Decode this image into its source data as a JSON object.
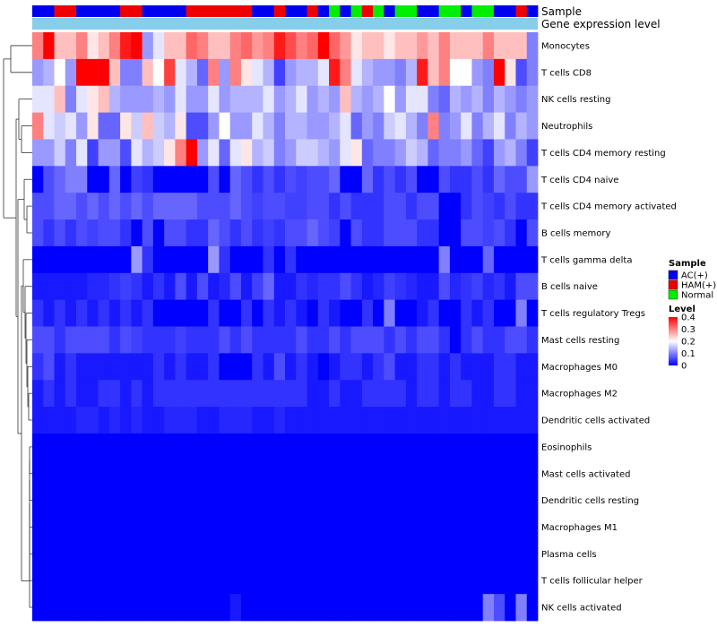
{
  "chart_data": {
    "type": "heatmap",
    "annotation_labels": [
      "Sample",
      "Gene expression level"
    ],
    "rows": [
      "Monocytes",
      "T cells CD8",
      "NK cells resting",
      "Neutrophils",
      "T cells CD4 memory resting",
      "T cells CD4 naive",
      "T cells CD4 memory activated",
      "B cells memory",
      "T cells gamma delta",
      "B cells naive",
      "T cells regulatory  Tregs",
      "Mast cells resting",
      "Macrophages M0",
      "Macrophages M2",
      "Dendritic cells activated",
      "Eosinophils",
      "Mast cells activated",
      "Dendritic cells resting",
      "Macrophages M1",
      "Plasma cells",
      "T cells follicular helper",
      "NK cells activated"
    ],
    "sample_groups": [
      "AC",
      "AC",
      "HAM",
      "HAM",
      "AC",
      "AC",
      "AC",
      "AC",
      "HAM",
      "HAM",
      "AC",
      "AC",
      "AC",
      "AC",
      "HAM",
      "HAM",
      "HAM",
      "HAM",
      "HAM",
      "HAM",
      "AC",
      "AC",
      "HAM",
      "AC",
      "AC",
      "HAM",
      "AC",
      "Normal",
      "AC",
      "Normal",
      "HAM",
      "Normal",
      "AC",
      "Normal",
      "Normal",
      "AC",
      "AC",
      "Normal",
      "Normal",
      "AC",
      "Normal",
      "Normal",
      "AC",
      "AC",
      "HAM",
      "AC"
    ],
    "matrix": [
      [
        0.3,
        0.4,
        0.25,
        0.25,
        0.3,
        0.22,
        0.25,
        0.3,
        0.38,
        0.4,
        0.12,
        0.18,
        0.25,
        0.25,
        0.32,
        0.3,
        0.25,
        0.25,
        0.3,
        0.32,
        0.28,
        0.3,
        0.38,
        0.34,
        0.3,
        0.32,
        0.4,
        0.32,
        0.28,
        0.22,
        0.25,
        0.25,
        0.22,
        0.25,
        0.25,
        0.28,
        0.25,
        0.3,
        0.25,
        0.25,
        0.25,
        0.3,
        0.25,
        0.25,
        0.25,
        0.1
      ],
      [
        0.12,
        0.14,
        0.2,
        0.12,
        0.4,
        0.4,
        0.4,
        0.25,
        0.1,
        0.1,
        0.25,
        0.2,
        0.35,
        0.18,
        0.14,
        0.08,
        0.3,
        0.12,
        0.3,
        0.22,
        0.18,
        0.14,
        0.05,
        0.12,
        0.14,
        0.14,
        0.18,
        0.38,
        0.3,
        0.18,
        0.14,
        0.12,
        0.12,
        0.1,
        0.14,
        0.38,
        0.25,
        0.3,
        0.2,
        0.2,
        0.12,
        0.1,
        0.4,
        0.22,
        0.06,
        0.1
      ],
      [
        0.18,
        0.18,
        0.25,
        0.1,
        0.18,
        0.22,
        0.25,
        0.14,
        0.12,
        0.12,
        0.12,
        0.14,
        0.12,
        0.18,
        0.12,
        0.12,
        0.18,
        0.12,
        0.14,
        0.14,
        0.14,
        0.18,
        0.12,
        0.14,
        0.18,
        0.12,
        0.14,
        0.12,
        0.25,
        0.14,
        0.12,
        0.14,
        0.2,
        0.12,
        0.18,
        0.18,
        0.1,
        0.08,
        0.14,
        0.12,
        0.14,
        0.1,
        0.14,
        0.12,
        0.1,
        0.12
      ],
      [
        0.3,
        0.18,
        0.16,
        0.18,
        0.12,
        0.22,
        0.08,
        0.08,
        0.22,
        0.16,
        0.25,
        0.16,
        0.14,
        0.22,
        0.06,
        0.06,
        0.12,
        0.2,
        0.12,
        0.12,
        0.18,
        0.14,
        0.1,
        0.14,
        0.14,
        0.12,
        0.12,
        0.14,
        0.18,
        0.08,
        0.12,
        0.1,
        0.16,
        0.18,
        0.14,
        0.1,
        0.3,
        0.1,
        0.12,
        0.18,
        0.1,
        0.14,
        0.18,
        0.1,
        0.14,
        0.12
      ],
      [
        0.12,
        0.12,
        0.16,
        0.1,
        0.18,
        0.05,
        0.12,
        0.12,
        0.06,
        0.18,
        0.14,
        0.16,
        0.22,
        0.3,
        0.4,
        0.12,
        0.18,
        0.08,
        0.18,
        0.22,
        0.14,
        0.16,
        0.1,
        0.12,
        0.16,
        0.16,
        0.14,
        0.12,
        0.18,
        0.22,
        0.08,
        0.1,
        0.1,
        0.12,
        0.16,
        0.14,
        0.08,
        0.1,
        0.1,
        0.12,
        0.08,
        0.05,
        0.12,
        0.14,
        0.1,
        0.05
      ],
      [
        0.0,
        0.06,
        0.08,
        0.1,
        0.1,
        0.0,
        0.0,
        0.08,
        0.0,
        0.05,
        0.04,
        0.0,
        0.0,
        0.0,
        0.0,
        0.0,
        0.06,
        0.0,
        0.08,
        0.06,
        0.04,
        0.06,
        0.04,
        0.06,
        0.05,
        0.06,
        0.06,
        0.08,
        0.0,
        0.0,
        0.08,
        0.04,
        0.06,
        0.04,
        0.06,
        0.0,
        0.0,
        0.06,
        0.04,
        0.04,
        0.06,
        0.04,
        0.08,
        0.06,
        0.06,
        0.12
      ],
      [
        0.06,
        0.06,
        0.08,
        0.08,
        0.06,
        0.08,
        0.06,
        0.08,
        0.06,
        0.08,
        0.06,
        0.08,
        0.08,
        0.08,
        0.08,
        0.06,
        0.06,
        0.06,
        0.08,
        0.06,
        0.05,
        0.06,
        0.06,
        0.05,
        0.05,
        0.06,
        0.06,
        0.04,
        0.06,
        0.04,
        0.04,
        0.04,
        0.06,
        0.06,
        0.04,
        0.06,
        0.06,
        0.0,
        0.0,
        0.04,
        0.06,
        0.05,
        0.04,
        0.06,
        0.04,
        0.04
      ],
      [
        0.06,
        0.04,
        0.06,
        0.04,
        0.06,
        0.05,
        0.06,
        0.06,
        0.04,
        0.0,
        0.06,
        0.0,
        0.06,
        0.06,
        0.04,
        0.04,
        0.08,
        0.06,
        0.04,
        0.06,
        0.04,
        0.05,
        0.04,
        0.06,
        0.06,
        0.08,
        0.06,
        0.05,
        0.0,
        0.06,
        0.04,
        0.04,
        0.06,
        0.06,
        0.06,
        0.04,
        0.04,
        0.0,
        0.0,
        0.06,
        0.06,
        0.05,
        0.06,
        0.04,
        0.0,
        0.06
      ],
      [
        0.0,
        0.0,
        0.0,
        0.0,
        0.0,
        0.0,
        0.0,
        0.0,
        0.0,
        0.12,
        0.04,
        0.0,
        0.0,
        0.0,
        0.0,
        0.0,
        0.12,
        0.04,
        0.0,
        0.0,
        0.0,
        0.04,
        0.0,
        0.04,
        0.0,
        0.0,
        0.0,
        0.0,
        0.0,
        0.0,
        0.0,
        0.0,
        0.0,
        0.0,
        0.0,
        0.0,
        0.0,
        0.1,
        0.0,
        0.0,
        0.0,
        0.08,
        0.0,
        0.0,
        0.0,
        0.0
      ],
      [
        0.02,
        0.02,
        0.02,
        0.02,
        0.02,
        0.03,
        0.03,
        0.04,
        0.05,
        0.04,
        0.02,
        0.04,
        0.02,
        0.06,
        0.02,
        0.06,
        0.02,
        0.03,
        0.06,
        0.02,
        0.05,
        0.08,
        0.02,
        0.02,
        0.04,
        0.03,
        0.04,
        0.04,
        0.06,
        0.04,
        0.02,
        0.03,
        0.05,
        0.04,
        0.03,
        0.02,
        0.02,
        0.06,
        0.03,
        0.04,
        0.05,
        0.03,
        0.04,
        0.02,
        0.06,
        0.06
      ],
      [
        0.04,
        0.02,
        0.04,
        0.02,
        0.04,
        0.02,
        0.04,
        0.02,
        0.04,
        0.02,
        0.04,
        0.0,
        0.0,
        0.0,
        0.0,
        0.0,
        0.04,
        0.0,
        0.0,
        0.04,
        0.0,
        0.04,
        0.02,
        0.04,
        0.02,
        0.0,
        0.04,
        0.02,
        0.0,
        0.0,
        0.04,
        0.0,
        0.1,
        0.0,
        0.0,
        0.02,
        0.04,
        0.0,
        0.0,
        0.04,
        0.02,
        0.04,
        0.0,
        0.0,
        0.1,
        0.0
      ],
      [
        0.06,
        0.06,
        0.04,
        0.06,
        0.06,
        0.06,
        0.06,
        0.04,
        0.06,
        0.05,
        0.04,
        0.04,
        0.04,
        0.05,
        0.04,
        0.04,
        0.04,
        0.06,
        0.04,
        0.06,
        0.04,
        0.04,
        0.04,
        0.04,
        0.06,
        0.04,
        0.04,
        0.06,
        0.04,
        0.06,
        0.06,
        0.06,
        0.04,
        0.06,
        0.04,
        0.06,
        0.06,
        0.04,
        0.0,
        0.04,
        0.06,
        0.04,
        0.04,
        0.06,
        0.06,
        0.04
      ],
      [
        0.04,
        0.06,
        0.02,
        0.04,
        0.02,
        0.02,
        0.02,
        0.02,
        0.02,
        0.02,
        0.02,
        0.04,
        0.02,
        0.04,
        0.02,
        0.02,
        0.04,
        0.0,
        0.0,
        0.0,
        0.04,
        0.02,
        0.06,
        0.02,
        0.04,
        0.02,
        0.0,
        0.02,
        0.04,
        0.04,
        0.02,
        0.04,
        0.06,
        0.02,
        0.02,
        0.04,
        0.04,
        0.02,
        0.04,
        0.02,
        0.02,
        0.02,
        0.04,
        0.04,
        0.02,
        0.02
      ],
      [
        0.02,
        0.04,
        0.02,
        0.04,
        0.02,
        0.02,
        0.04,
        0.04,
        0.02,
        0.04,
        0.02,
        0.04,
        0.04,
        0.04,
        0.04,
        0.04,
        0.04,
        0.04,
        0.04,
        0.04,
        0.04,
        0.04,
        0.04,
        0.04,
        0.04,
        0.02,
        0.02,
        0.04,
        0.02,
        0.02,
        0.04,
        0.04,
        0.04,
        0.04,
        0.02,
        0.04,
        0.04,
        0.02,
        0.04,
        0.04,
        0.02,
        0.02,
        0.04,
        0.04,
        0.02,
        0.02
      ],
      [
        0.02,
        0.02,
        0.02,
        0.02,
        0.03,
        0.03,
        0.02,
        0.03,
        0.02,
        0.03,
        0.02,
        0.02,
        0.03,
        0.03,
        0.03,
        0.02,
        0.02,
        0.03,
        0.03,
        0.03,
        0.02,
        0.02,
        0.03,
        0.02,
        0.02,
        0.02,
        0.02,
        0.02,
        0.02,
        0.02,
        0.02,
        0.02,
        0.02,
        0.02,
        0.02,
        0.02,
        0.02,
        0.02,
        0.02,
        0.02,
        0.02,
        0.02,
        0.02,
        0.02,
        0.02,
        0.02
      ],
      [
        0.0,
        0.0,
        0.0,
        0.0,
        0.0,
        0.0,
        0.0,
        0.0,
        0.0,
        0.0,
        0.0,
        0.0,
        0.0,
        0.0,
        0.0,
        0.0,
        0.0,
        0.0,
        0.0,
        0.0,
        0.0,
        0.0,
        0.0,
        0.0,
        0.0,
        0.0,
        0.0,
        0.0,
        0.0,
        0.0,
        0.0,
        0.0,
        0.0,
        0.0,
        0.0,
        0.0,
        0.0,
        0.0,
        0.0,
        0.0,
        0.0,
        0.0,
        0.0,
        0.0,
        0.0,
        0.0
      ],
      [
        0.0,
        0.0,
        0.0,
        0.0,
        0.0,
        0.0,
        0.0,
        0.0,
        0.0,
        0.0,
        0.0,
        0.0,
        0.0,
        0.0,
        0.0,
        0.0,
        0.0,
        0.0,
        0.0,
        0.0,
        0.0,
        0.0,
        0.0,
        0.0,
        0.0,
        0.0,
        0.0,
        0.0,
        0.0,
        0.0,
        0.0,
        0.0,
        0.0,
        0.0,
        0.0,
        0.0,
        0.0,
        0.0,
        0.0,
        0.0,
        0.0,
        0.0,
        0.0,
        0.0,
        0.0,
        0.0
      ],
      [
        0.0,
        0.0,
        0.0,
        0.0,
        0.0,
        0.0,
        0.0,
        0.0,
        0.0,
        0.0,
        0.0,
        0.0,
        0.0,
        0.0,
        0.0,
        0.0,
        0.0,
        0.0,
        0.0,
        0.0,
        0.0,
        0.0,
        0.0,
        0.0,
        0.0,
        0.0,
        0.0,
        0.0,
        0.0,
        0.0,
        0.0,
        0.0,
        0.0,
        0.0,
        0.0,
        0.0,
        0.0,
        0.0,
        0.0,
        0.0,
        0.0,
        0.0,
        0.0,
        0.0,
        0.0,
        0.0
      ],
      [
        0.0,
        0.0,
        0.0,
        0.0,
        0.0,
        0.0,
        0.0,
        0.0,
        0.0,
        0.0,
        0.0,
        0.0,
        0.0,
        0.0,
        0.0,
        0.0,
        0.0,
        0.0,
        0.0,
        0.0,
        0.0,
        0.0,
        0.0,
        0.0,
        0.0,
        0.0,
        0.0,
        0.0,
        0.0,
        0.0,
        0.0,
        0.0,
        0.0,
        0.0,
        0.0,
        0.0,
        0.0,
        0.0,
        0.0,
        0.0,
        0.0,
        0.0,
        0.0,
        0.0,
        0.0,
        0.0
      ],
      [
        0.0,
        0.0,
        0.0,
        0.0,
        0.0,
        0.0,
        0.0,
        0.0,
        0.0,
        0.0,
        0.0,
        0.0,
        0.0,
        0.0,
        0.0,
        0.0,
        0.0,
        0.0,
        0.0,
        0.0,
        0.0,
        0.0,
        0.0,
        0.0,
        0.0,
        0.0,
        0.0,
        0.0,
        0.0,
        0.0,
        0.0,
        0.0,
        0.0,
        0.0,
        0.0,
        0.0,
        0.0,
        0.0,
        0.0,
        0.0,
        0.0,
        0.0,
        0.0,
        0.0,
        0.0,
        0.0
      ],
      [
        0.0,
        0.0,
        0.0,
        0.0,
        0.0,
        0.0,
        0.0,
        0.0,
        0.0,
        0.0,
        0.0,
        0.0,
        0.0,
        0.0,
        0.0,
        0.0,
        0.0,
        0.0,
        0.0,
        0.0,
        0.0,
        0.0,
        0.0,
        0.0,
        0.0,
        0.0,
        0.0,
        0.0,
        0.0,
        0.0,
        0.0,
        0.0,
        0.0,
        0.0,
        0.0,
        0.0,
        0.0,
        0.0,
        0.0,
        0.0,
        0.0,
        0.0,
        0.0,
        0.0,
        0.0,
        0.0
      ],
      [
        0.0,
        0.0,
        0.0,
        0.0,
        0.0,
        0.0,
        0.0,
        0.0,
        0.0,
        0.0,
        0.0,
        0.0,
        0.0,
        0.0,
        0.0,
        0.0,
        0.0,
        0.0,
        0.02,
        0.0,
        0.0,
        0.0,
        0.0,
        0.0,
        0.0,
        0.0,
        0.0,
        0.0,
        0.0,
        0.0,
        0.0,
        0.0,
        0.0,
        0.0,
        0.0,
        0.0,
        0.0,
        0.0,
        0.0,
        0.0,
        0.0,
        0.1,
        0.06,
        0.0,
        0.1,
        0.0
      ]
    ],
    "legend_sample": {
      "title": "Sample",
      "entries": [
        {
          "key": "AC",
          "label": "AC(+)",
          "color": "#0000ee"
        },
        {
          "key": "HAM",
          "label": "HAM(+)",
          "color": "#ee0000"
        },
        {
          "key": "Normal",
          "label": "Normal",
          "color": "#00ee00"
        }
      ]
    },
    "legend_level": {
      "title": "Level",
      "range": [
        0,
        0.4
      ],
      "ticks": [
        "0.4",
        "0.3",
        "0.2",
        "0.1",
        "0"
      ],
      "tick_values": [
        0.4,
        0.3,
        0.2,
        0.1,
        0
      ],
      "color_low": "#0000ff",
      "color_mid": "#ffffff",
      "color_high": "#ff0000"
    },
    "gene_expression_color": "#87ceeb"
  }
}
